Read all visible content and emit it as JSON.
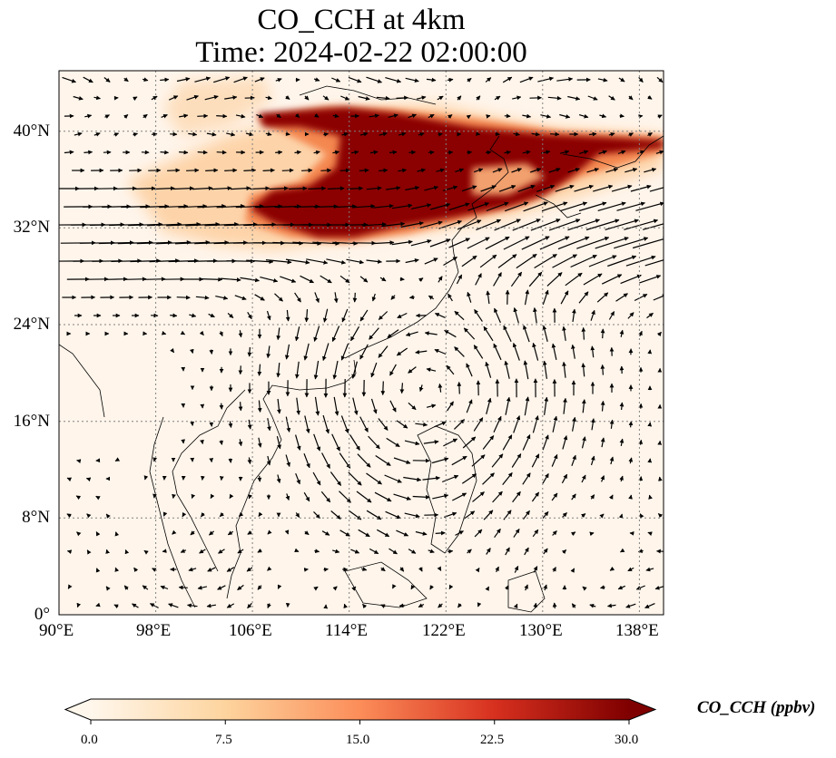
{
  "title": {
    "line1": "CO_CCH at 4km",
    "line2": "Time: 2024-02-22 02:00:00"
  },
  "map": {
    "lon_range": [
      90,
      140
    ],
    "lat_range": [
      0,
      45
    ],
    "lon_ticks": [
      "90°E",
      "98°E",
      "106°E",
      "114°E",
      "122°E",
      "130°E",
      "138°E"
    ],
    "lat_ticks": [
      "0°",
      "8°N",
      "16°N",
      "24°N",
      "32°N",
      "40°N"
    ],
    "gridlines": true,
    "gridline_style": "dotted",
    "variable": "CO_CCH",
    "overlay": "wind vectors (arrows)",
    "colors": {
      "background": "#fff5eb",
      "low": "#fdd0a2",
      "mid": "#f16913",
      "high": "#7f0000"
    }
  },
  "colorbar": {
    "label": "CO_CCH (ppbv)",
    "ticks": [
      "0.0",
      "7.5",
      "15.0",
      "22.5",
      "30.0"
    ],
    "range": [
      0,
      30
    ],
    "extend": "both",
    "colormap": "OrRd"
  }
}
